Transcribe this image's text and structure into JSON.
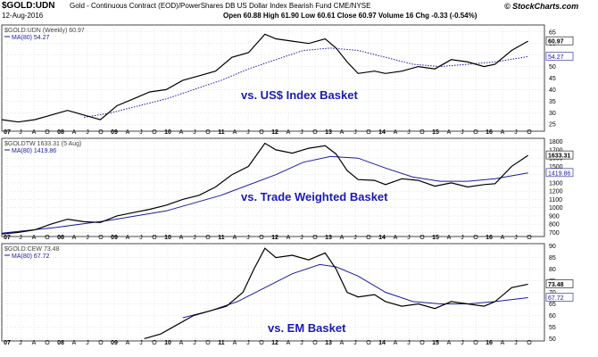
{
  "header": {
    "symbol": "$GOLD:UDN",
    "description": "Gold - Continuous Contract (EOD)/PowerShares DB US Dollar Index Bearish Fund CME/NYSE",
    "date": "12-Aug-2016",
    "ohlc": "Open 60.88  High 61.90  Low 60.61  Close 60.97  Volume 16  Chg -0.33 (-0.54%)",
    "brand": "© StockCharts.com"
  },
  "colors": {
    "price": "#000000",
    "ma": "#1a1aa0",
    "annotation": "#1a1ab4",
    "grid": "#cfcfcf"
  },
  "chart_data": [
    {
      "type": "line",
      "legend": [
        "$GOLD:UDN (Weekly) 60.97",
        "MA(80) 54.27"
      ],
      "annotation": "vs. US$ Index Basket",
      "x_ticks": [
        "07",
        "J",
        "A",
        "O",
        "08",
        "A",
        "J",
        "O",
        "09",
        "A",
        "J",
        "O",
        "10",
        "A",
        "J",
        "O",
        "11",
        "A",
        "J",
        "O",
        "12",
        "A",
        "J",
        "O",
        "13",
        "A",
        "J",
        "O",
        "14",
        "A",
        "J",
        "O",
        "15",
        "A",
        "J",
        "O",
        "16",
        "A",
        "J",
        "O"
      ],
      "y_ticks": [
        "65",
        "60",
        "55",
        "50",
        "45",
        "40",
        "35",
        "30",
        "25"
      ],
      "ylim": [
        22,
        68
      ],
      "xlim": [
        2007.0,
        2016.9
      ],
      "last_price": "60.97",
      "last_ma": "54.27",
      "ma_style": "dotted",
      "series": [
        {
          "x": [
            2007.0,
            2007.3,
            2007.6,
            2007.9,
            2008.2,
            2008.5,
            2008.8,
            2009.1,
            2009.4,
            2009.7,
            2010.0,
            2010.3,
            2010.6,
            2010.9,
            2011.2,
            2011.5,
            2011.8,
            2012.0,
            2012.3,
            2012.6,
            2012.9,
            2013.1,
            2013.3,
            2013.5,
            2013.8,
            2014.0,
            2014.3,
            2014.6,
            2014.9,
            2015.2,
            2015.5,
            2015.8,
            2016.0,
            2016.3,
            2016.6
          ],
          "values": [
            27,
            26,
            27,
            29,
            31,
            29,
            27,
            33,
            36,
            39,
            40,
            44,
            46,
            48,
            54,
            56,
            64,
            62,
            61,
            60,
            62,
            58,
            52,
            47,
            48,
            47,
            48,
            50,
            49,
            53,
            52,
            50,
            51,
            57,
            61
          ]
        },
        {
          "x": [
            2008.5,
            2009.0,
            2009.5,
            2010.0,
            2010.5,
            2011.0,
            2011.5,
            2012.0,
            2012.5,
            2013.0,
            2013.5,
            2014.0,
            2014.5,
            2015.0,
            2015.5,
            2016.0,
            2016.6
          ],
          "values": [
            28,
            30,
            33,
            36,
            40,
            44,
            49,
            53,
            57,
            58,
            57,
            54,
            51,
            50,
            51,
            52,
            54.3
          ]
        }
      ]
    },
    {
      "type": "line",
      "legend": [
        "$GOLDTW 1633.31 (5 Aug)",
        "MA(80) 1419.86"
      ],
      "annotation": "vs. Trade Weighted Basket",
      "x_ticks": [
        "07",
        "J",
        "A",
        "O",
        "08",
        "A",
        "J",
        "O",
        "09",
        "A",
        "J",
        "O",
        "10",
        "A",
        "J",
        "O",
        "11",
        "A",
        "J",
        "O",
        "12",
        "A",
        "J",
        "O",
        "13",
        "A",
        "J",
        "O",
        "14",
        "A",
        "J",
        "O",
        "15",
        "A",
        "J",
        "O",
        "16",
        "A",
        "J",
        "O"
      ],
      "y_ticks": [
        "1800",
        "1700",
        "1600",
        "1500",
        "1400",
        "1300",
        "1200",
        "1100",
        "1000",
        "900",
        "800",
        "700"
      ],
      "ylim": [
        650,
        1840
      ],
      "xlim": [
        2007.0,
        2016.9
      ],
      "last_price": "1633.31",
      "last_ma": "1419.86",
      "ma_style": "solid",
      "series": [
        {
          "x": [
            2007.0,
            2007.3,
            2007.6,
            2007.9,
            2008.2,
            2008.5,
            2008.8,
            2009.1,
            2009.4,
            2009.7,
            2010.0,
            2010.3,
            2010.6,
            2010.9,
            2011.2,
            2011.5,
            2011.8,
            2012.0,
            2012.3,
            2012.6,
            2012.9,
            2013.1,
            2013.3,
            2013.5,
            2013.8,
            2014.0,
            2014.3,
            2014.6,
            2014.9,
            2015.2,
            2015.5,
            2015.8,
            2016.0,
            2016.3,
            2016.6
          ],
          "values": [
            680,
            700,
            730,
            800,
            860,
            830,
            820,
            900,
            940,
            980,
            1030,
            1100,
            1150,
            1250,
            1400,
            1500,
            1780,
            1700,
            1660,
            1720,
            1750,
            1650,
            1450,
            1340,
            1330,
            1280,
            1350,
            1330,
            1260,
            1300,
            1250,
            1280,
            1290,
            1500,
            1633
          ]
        },
        {
          "x": [
            2007.0,
            2008.0,
            2009.0,
            2010.0,
            2011.0,
            2012.0,
            2012.5,
            2013.0,
            2013.5,
            2014.0,
            2014.5,
            2015.0,
            2015.5,
            2016.0,
            2016.6
          ],
          "values": [
            690,
            760,
            850,
            960,
            1150,
            1400,
            1550,
            1620,
            1600,
            1480,
            1370,
            1320,
            1320,
            1350,
            1420
          ]
        }
      ]
    },
    {
      "type": "line",
      "legend": [
        "$GOLD:CEW 73.48",
        "MA(80) 67.72"
      ],
      "annotation": "vs. EM Basket",
      "x_ticks": [
        "07",
        "J",
        "A",
        "O",
        "08",
        "A",
        "J",
        "O",
        "09",
        "A",
        "J",
        "O",
        "10",
        "A",
        "J",
        "O",
        "11",
        "A",
        "J",
        "O",
        "12",
        "A",
        "J",
        "O",
        "13",
        "A",
        "J",
        "O",
        "14",
        "A",
        "J",
        "O",
        "15",
        "A",
        "J",
        "O",
        "16",
        "A",
        "J",
        "O"
      ],
      "y_ticks": [
        "90",
        "85",
        "80",
        "75",
        "70",
        "65",
        "60",
        "55",
        "50"
      ],
      "ylim": [
        49,
        91
      ],
      "xlim": [
        2007.0,
        2016.9
      ],
      "last_price": "73.48",
      "last_ma": "67.72",
      "ma_style": "solid",
      "series": [
        {
          "x": [
            2009.6,
            2009.9,
            2010.2,
            2010.5,
            2010.8,
            2011.1,
            2011.4,
            2011.6,
            2011.8,
            2012.0,
            2012.3,
            2012.6,
            2012.9,
            2013.1,
            2013.3,
            2013.5,
            2013.8,
            2014.0,
            2014.3,
            2014.6,
            2014.9,
            2015.2,
            2015.5,
            2015.8,
            2016.0,
            2016.3,
            2016.6
          ],
          "values": [
            50,
            52,
            56,
            60,
            62,
            64,
            70,
            80,
            89,
            85,
            86,
            84,
            87,
            80,
            70,
            68,
            69,
            66,
            64,
            65,
            63,
            66,
            65,
            64,
            66,
            72,
            73.5
          ]
        },
        {
          "x": [
            2010.3,
            2010.8,
            2011.3,
            2011.8,
            2012.3,
            2012.8,
            2013.1,
            2013.5,
            2014.0,
            2014.5,
            2015.0,
            2015.5,
            2016.0,
            2016.6
          ],
          "values": [
            59,
            62,
            66,
            72,
            78,
            82,
            81,
            77,
            70,
            66,
            65,
            65,
            66,
            67.7
          ]
        }
      ]
    }
  ]
}
